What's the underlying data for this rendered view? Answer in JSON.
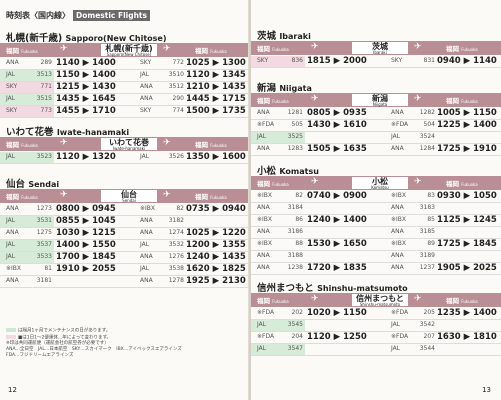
{
  "left_page": {
    "header_jp": "時刻表〈国内線〉",
    "header_en": "Domestic Flights",
    "page_number": "12",
    "sections": [
      {
        "title_jp": "札幌(新千歳)",
        "title_en": "Sapporo(New Chitose)",
        "from_jp": "福岡",
        "from_en": "Fukuoka",
        "center_jp": "札幌(新千歳)",
        "center_en": "Sapporo(New Chitose)",
        "to_jp": "福岡",
        "to_en": "Fukuoka",
        "rows": [
          {
            "al": "ANA",
            "fn": "289",
            "t": "1140 ▶ 1400",
            "al2": "SKY",
            "fn2": "772",
            "t2": "1025 ▶ 1300"
          },
          {
            "al": "JAL",
            "fn": "3513",
            "t": "1150 ▶ 1400",
            "al2": "JAL",
            "fn2": "3510",
            "t2": "1120 ▶ 1345"
          },
          {
            "al": "SKY",
            "fn": "771",
            "t": "1215 ▶ 1430",
            "al2": "ANA",
            "fn2": "3512",
            "t2": "1210 ▶ 1435"
          },
          {
            "al": "JAL",
            "fn": "3515",
            "t": "1435 ▶ 1645",
            "al2": "ANA",
            "fn2": "290",
            "t2": "1445 ▶ 1715"
          },
          {
            "al": "SKY",
            "fn": "773",
            "t": "1455 ▶ 1710",
            "al2": "SKY",
            "fn2": "774",
            "t2": "1500 ▶ 1735"
          }
        ]
      },
      {
        "title_jp": "いわて花巻",
        "title_en": "Iwate-hanamaki",
        "from_jp": "福岡",
        "from_en": "Fukuoka",
        "center_jp": "いわて花巻",
        "center_en": "Iwate-hanamaki",
        "to_jp": "福岡",
        "to_en": "Fukuoka",
        "rows": [
          {
            "al": "JAL",
            "fn": "3523",
            "t": "1120 ▶ 1320",
            "al2": "JAL",
            "fn2": "3526",
            "t2": "1350 ▶ 1600"
          }
        ]
      },
      {
        "title_jp": "仙台",
        "title_en": "Sendai",
        "from_jp": "福岡",
        "from_en": "Fukuoka",
        "center_jp": "仙台",
        "center_en": "Sendai",
        "to_jp": "福岡",
        "to_en": "Fukuoka",
        "rows": [
          {
            "al": "ANA",
            "fn": "1273",
            "t": "0800 ▶ 0945",
            "al2": "※IBX",
            "fn2": "82",
            "t2": "0735 ▶ 0940"
          },
          {
            "al": "JAL",
            "fn": "3531",
            "t": "0855 ▶ 1045",
            "al2": "ANA",
            "fn2": "3182",
            "t2": ""
          },
          {
            "al": "ANA",
            "fn": "1275",
            "t": "1030 ▶ 1215",
            "al2": "ANA",
            "fn2": "1274",
            "t2": "1025 ▶ 1220"
          },
          {
            "al": "JAL",
            "fn": "3537",
            "t": "1400 ▶ 1550",
            "al2": "JAL",
            "fn2": "3532",
            "t2": "1200 ▶ 1355"
          },
          {
            "al": "JAL",
            "fn": "3533",
            "t": "1700 ▶ 1845",
            "al2": "ANA",
            "fn2": "1276",
            "t2": "1240 ▶ 1435"
          },
          {
            "al": "※IBX",
            "fn": "81",
            "t": "1910 ▶ 2055",
            "al2": "JAL",
            "fn2": "3538",
            "t2": "1620 ▶ 1825"
          },
          {
            "al": "ANA",
            "fn": "3181",
            "t": "",
            "al2": "ANA",
            "fn2": "1278",
            "t2": "1925 ▶ 2130"
          }
        ]
      }
    ],
    "legend": [
      "は隔月1ヶ月でメンテナンスの日があります。",
      "■は1日1〜2便運休…年によって変わります。",
      "※印は共同運航便（運航会社の航空券が必要です）",
      "ANA…全日空　JAL…日本航空　SKY…スカイマーク　IBX…アイベックスエアラインズ",
      "FDA…フジドリームエアラインズ"
    ]
  },
  "right_page": {
    "page_number": "13",
    "sections": [
      {
        "title_jp": "茨城",
        "title_en": "Ibaraki",
        "from_jp": "福岡",
        "from_en": "Fukuoka",
        "center_jp": "茨城",
        "center_en": "Ibaraki",
        "to_jp": "福岡",
        "to_en": "Fukuoka",
        "rows": [
          {
            "al": "SKY",
            "fn": "836",
            "t": "1815 ▶ 2000",
            "al2": "SKY",
            "fn2": "831",
            "t2": "0940 ▶ 1140"
          }
        ]
      },
      {
        "title_jp": "新潟",
        "title_en": "Niigata",
        "from_jp": "福岡",
        "from_en": "Fukuoka",
        "center_jp": "新潟",
        "center_en": "Niigata",
        "to_jp": "福岡",
        "to_en": "Fukuoka",
        "rows": [
          {
            "al": "ANA",
            "fn": "1281",
            "t": "0805 ▶ 0935",
            "al2": "ANA",
            "fn2": "1282",
            "t2": "1005 ▶ 1150"
          },
          {
            "al": "※FDA",
            "fn": "505",
            "t": "1430 ▶ 1610",
            "al2": "※FDA",
            "fn2": "504",
            "t2": "1225 ▶ 1400"
          },
          {
            "al": "JAL",
            "fn": "3525",
            "t": "",
            "al2": "JAL",
            "fn2": "3524",
            "t2": ""
          },
          {
            "al": "ANA",
            "fn": "1283",
            "t": "1505 ▶ 1635",
            "al2": "ANA",
            "fn2": "1284",
            "t2": "1725 ▶ 1910"
          }
        ]
      },
      {
        "title_jp": "小松",
        "title_en": "Komatsu",
        "from_jp": "福岡",
        "from_en": "Fukuoka",
        "center_jp": "小松",
        "center_en": "Komatsu",
        "to_jp": "福岡",
        "to_en": "Fukuoka",
        "rows": [
          {
            "al": "※IBX",
            "fn": "82",
            "t": "0740 ▶ 0900",
            "al2": "※IBX",
            "fn2": "83",
            "t2": "0930 ▶ 1050"
          },
          {
            "al": "ANA",
            "fn": "3184",
            "t": "",
            "al2": "ANA",
            "fn2": "3183",
            "t2": ""
          },
          {
            "al": "※IBX",
            "fn": "86",
            "t": "1240 ▶ 1400",
            "al2": "※IBX",
            "fn2": "85",
            "t2": "1125 ▶ 1245"
          },
          {
            "al": "ANA",
            "fn": "3186",
            "t": "",
            "al2": "ANA",
            "fn2": "3185",
            "t2": ""
          },
          {
            "al": "※IBX",
            "fn": "88",
            "t": "1530 ▶ 1650",
            "al2": "※IBX",
            "fn2": "89",
            "t2": "1725 ▶ 1845"
          },
          {
            "al": "ANA",
            "fn": "3188",
            "t": "",
            "al2": "ANA",
            "fn2": "3189",
            "t2": ""
          },
          {
            "al": "ANA",
            "fn": "1238",
            "t": "1720 ▶ 1835",
            "al2": "ANA",
            "fn2": "1237",
            "t2": "1905 ▶ 2025"
          }
        ]
      },
      {
        "title_jp": "信州まつもと",
        "title_en": "Shinshu-matsumoto",
        "from_jp": "福岡",
        "from_en": "Fukuoka",
        "center_jp": "信州まつもと",
        "center_en": "Shinshu-matsumoto",
        "to_jp": "福岡",
        "to_en": "Fukuoka",
        "rows": [
          {
            "al": "※FDA",
            "fn": "202",
            "t": "1020 ▶ 1150",
            "al2": "※FDA",
            "fn2": "205",
            "t2": "1235 ▶ 1400"
          },
          {
            "al": "JAL",
            "fn": "3545",
            "t": "",
            "al2": "JAL",
            "fn2": "3542",
            "t2": ""
          },
          {
            "al": "※FDA",
            "fn": "204",
            "t": "1120 ▶ 1250",
            "al2": "※FDA",
            "fn2": "207",
            "t2": "1630 ▶ 1810"
          },
          {
            "al": "JAL",
            "fn": "3547",
            "t": "",
            "al2": "JAL",
            "fn2": "3544",
            "t2": ""
          }
        ]
      }
    ]
  }
}
